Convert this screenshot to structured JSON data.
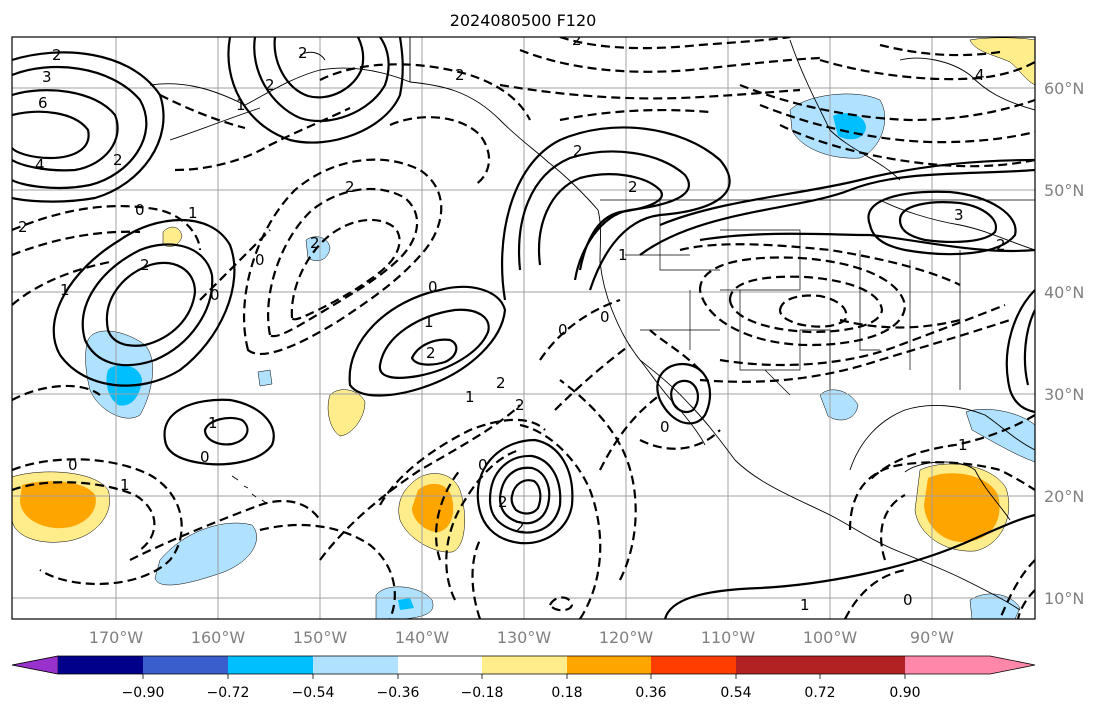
{
  "title": "2024080500 F120",
  "map": {
    "lon_labels": [
      "170°W",
      "160°W",
      "150°W",
      "140°W",
      "130°W",
      "120°W",
      "110°W",
      "100°W",
      "90°W"
    ],
    "lat_labels": [
      "60°N",
      "50°N",
      "40°N",
      "30°N",
      "20°N",
      "10°N"
    ],
    "contour_labels": [
      "2",
      "3",
      "6",
      "4",
      "2",
      "2",
      "2",
      "0",
      "2",
      "1",
      "2",
      "0",
      "1",
      "0",
      "2",
      "1",
      "2",
      "2",
      "2",
      "0",
      "0",
      "1",
      "2",
      "2",
      "2",
      "1",
      "0",
      "1",
      "0",
      "1",
      "2",
      "2",
      "2",
      "0",
      "0",
      "1",
      "2",
      "0",
      "1",
      "0",
      "1",
      "3",
      "4",
      "2"
    ]
  },
  "colorbar": {
    "tick_labels": [
      "−0.90",
      "−0.72",
      "−0.54",
      "−0.36",
      "−0.18",
      "0.18",
      "0.36",
      "0.54",
      "0.72",
      "0.90"
    ],
    "colors": [
      "#9932cc",
      "#00008b",
      "#3a5fcd",
      "#00bfff",
      "#b0e2ff",
      "#ffffff",
      "#ffec8b",
      "#ffa500",
      "#ff3d00",
      "#b22222",
      "#ff88aa"
    ]
  }
}
